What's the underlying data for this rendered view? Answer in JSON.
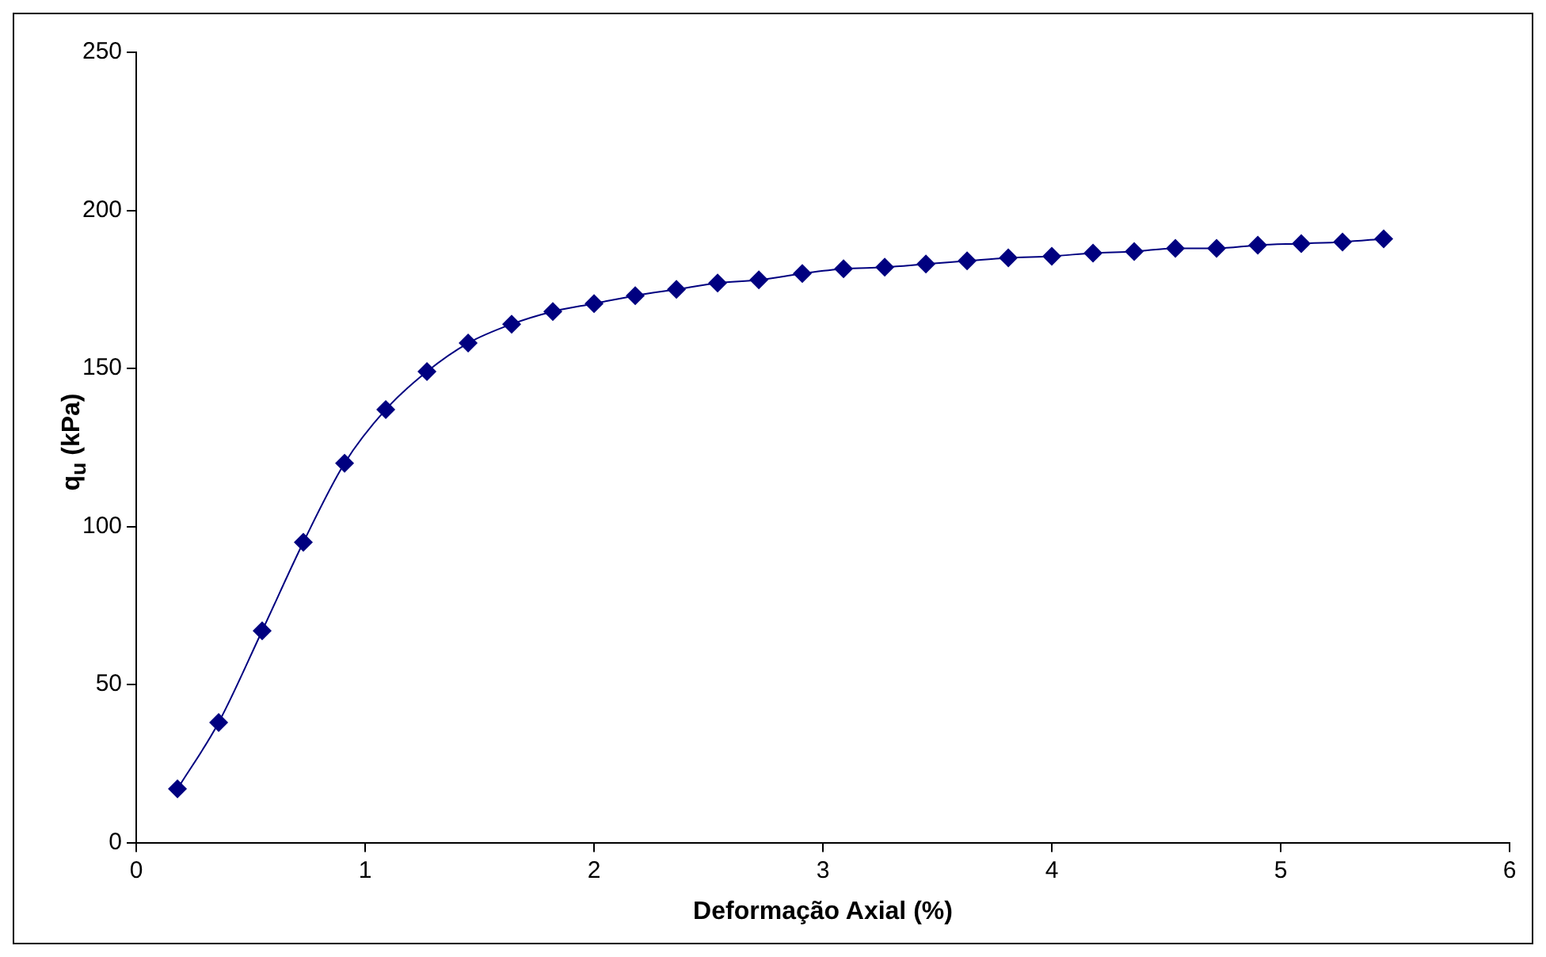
{
  "chart_data": {
    "type": "line",
    "xlabel": "Deformação Axial (%)",
    "ylabel": "q$_{u}$ (kPa)",
    "x": [
      0.18,
      0.36,
      0.55,
      0.73,
      0.91,
      1.09,
      1.27,
      1.45,
      1.64,
      1.82,
      2.0,
      2.18,
      2.36,
      2.54,
      2.72,
      2.91,
      3.09,
      3.27,
      3.45,
      3.63,
      3.81,
      4.0,
      4.18,
      4.36,
      4.54,
      4.72,
      4.9,
      5.09,
      5.27,
      5.45
    ],
    "series": [
      {
        "color": "#000080",
        "values": [
          17,
          38,
          67,
          95,
          120,
          137,
          149,
          158,
          164,
          168,
          170.5,
          173,
          175,
          177,
          178,
          180,
          181.5,
          182,
          183,
          184,
          185,
          185.5,
          186.5,
          187,
          188,
          188,
          189,
          189.5,
          190,
          191
        ]
      }
    ],
    "xlim": [
      0,
      6
    ],
    "xticks": [
      0,
      1,
      2,
      3,
      4,
      5,
      6
    ],
    "ylim": [
      0,
      250
    ],
    "yticks": [
      0,
      50,
      100,
      150,
      200,
      250
    ],
    "grid": false,
    "legend": false,
    "marker": "diamond",
    "line_style": "solid"
  }
}
